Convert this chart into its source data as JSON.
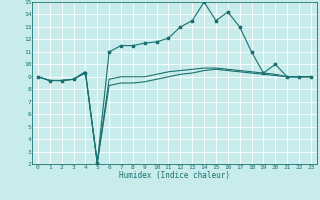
{
  "title": "",
  "xlabel": "Humidex (Indice chaleur)",
  "bg_color": "#c8ecec",
  "grid_color": "#ffffff",
  "line_color": "#1a7070",
  "xlim": [
    -0.5,
    23.5
  ],
  "ylim": [
    2,
    15
  ],
  "xticks": [
    0,
    1,
    2,
    3,
    4,
    5,
    6,
    7,
    8,
    9,
    10,
    11,
    12,
    13,
    14,
    15,
    16,
    17,
    18,
    19,
    20,
    21,
    22,
    23
  ],
  "yticks": [
    2,
    3,
    4,
    5,
    6,
    7,
    8,
    9,
    10,
    11,
    12,
    13,
    14,
    15
  ],
  "series": [
    {
      "x": [
        0,
        1,
        2,
        3,
        4,
        5,
        6,
        7,
        8,
        9,
        10,
        11,
        12,
        13,
        14,
        15,
        16,
        17,
        18,
        19,
        20,
        21,
        22,
        23
      ],
      "y": [
        9.0,
        8.7,
        8.7,
        8.8,
        9.4,
        2.1,
        8.3,
        8.5,
        8.5,
        8.6,
        8.8,
        9.0,
        9.2,
        9.3,
        9.5,
        9.6,
        9.5,
        9.4,
        9.3,
        9.2,
        9.1,
        9.0,
        9.0,
        9.0
      ],
      "marker": null,
      "lw": 0.8
    },
    {
      "x": [
        0,
        1,
        2,
        3,
        4,
        5,
        6,
        7,
        8,
        9,
        10,
        11,
        12,
        13,
        14,
        15,
        16,
        17,
        18,
        19,
        20,
        21,
        22,
        23
      ],
      "y": [
        9.0,
        8.7,
        8.7,
        8.8,
        9.3,
        2.1,
        11.0,
        11.5,
        11.5,
        11.7,
        11.8,
        12.1,
        13.0,
        13.5,
        15.0,
        13.5,
        14.2,
        13.0,
        11.0,
        9.3,
        10.0,
        9.0,
        9.0,
        9.0
      ],
      "marker": "*",
      "lw": 0.8
    },
    {
      "x": [
        0,
        1,
        2,
        3,
        4,
        5,
        6,
        7,
        8,
        9,
        10,
        11,
        12,
        13,
        14,
        15,
        16,
        17,
        18,
        19,
        20,
        21,
        22,
        23
      ],
      "y": [
        9.0,
        8.7,
        8.7,
        8.8,
        9.4,
        2.1,
        8.8,
        9.0,
        9.0,
        9.0,
        9.2,
        9.4,
        9.5,
        9.6,
        9.7,
        9.7,
        9.6,
        9.5,
        9.4,
        9.3,
        9.2,
        9.0,
        9.0,
        9.0
      ],
      "marker": null,
      "lw": 0.8
    }
  ]
}
